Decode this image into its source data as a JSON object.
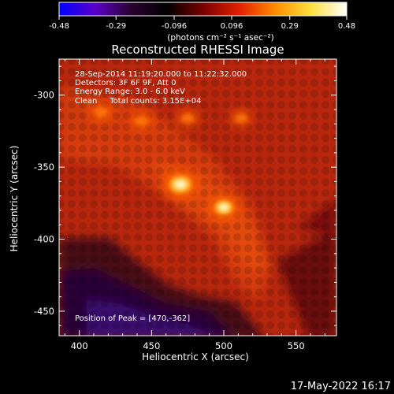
{
  "colorbar": {
    "tick_labels": [
      "-0.48",
      "-0.29",
      "-0.096",
      "0.096",
      "0.29",
      "0.48"
    ],
    "tick_values": [
      -0.48,
      -0.29,
      -0.096,
      0.096,
      0.29,
      0.48
    ],
    "range": [
      -0.48,
      0.48
    ],
    "units_label": "(photons cm⁻² s⁻¹ asec⁻²)",
    "colors": [
      "#0000ff",
      "#5a00c8",
      "#2a0030",
      "#000000",
      "#7a0000",
      "#e02000",
      "#ff8a00",
      "#ffe040",
      "#ffffff"
    ]
  },
  "chart_data": {
    "type": "heatmap",
    "title": "Reconstructed RHESSI Image",
    "xlabel": "Heliocentric X (arcsec)",
    "ylabel": "Heliocentric Y (arcsec)",
    "xlim": [
      386,
      578
    ],
    "ylim": [
      -467,
      -275
    ],
    "x_tick_labels": [
      "400",
      "450",
      "500",
      "550"
    ],
    "x_ticks": [
      400,
      450,
      500,
      550
    ],
    "y_tick_labels": [
      "-300",
      "-350",
      "-400",
      "-450"
    ],
    "y_ticks": [
      -300,
      -350,
      -400,
      -450
    ],
    "annotations": [
      "28-Sep-2014 11:19:20.000 to 11:22:32.000",
      "Detectors: 3F 6F 9F, Att 0",
      "Energy Range: 3.0 - 6.0 keV",
      "Clean     Total counts: 3.15E+04"
    ],
    "peak_label": "Position of Peak = [470,-362]",
    "peak": [
      470,
      -362
    ],
    "sources": [
      {
        "x": 470,
        "y": -362,
        "value": 0.48
      },
      {
        "x": 500,
        "y": -378,
        "value": 0.4
      },
      {
        "x": 415,
        "y": -312,
        "value": 0.22
      },
      {
        "x": 443,
        "y": -318,
        "value": 0.2
      },
      {
        "x": 475,
        "y": -316,
        "value": 0.18
      },
      {
        "x": 512,
        "y": -316,
        "value": 0.16
      }
    ]
  },
  "timestamp": "17-May-2022 16:17"
}
